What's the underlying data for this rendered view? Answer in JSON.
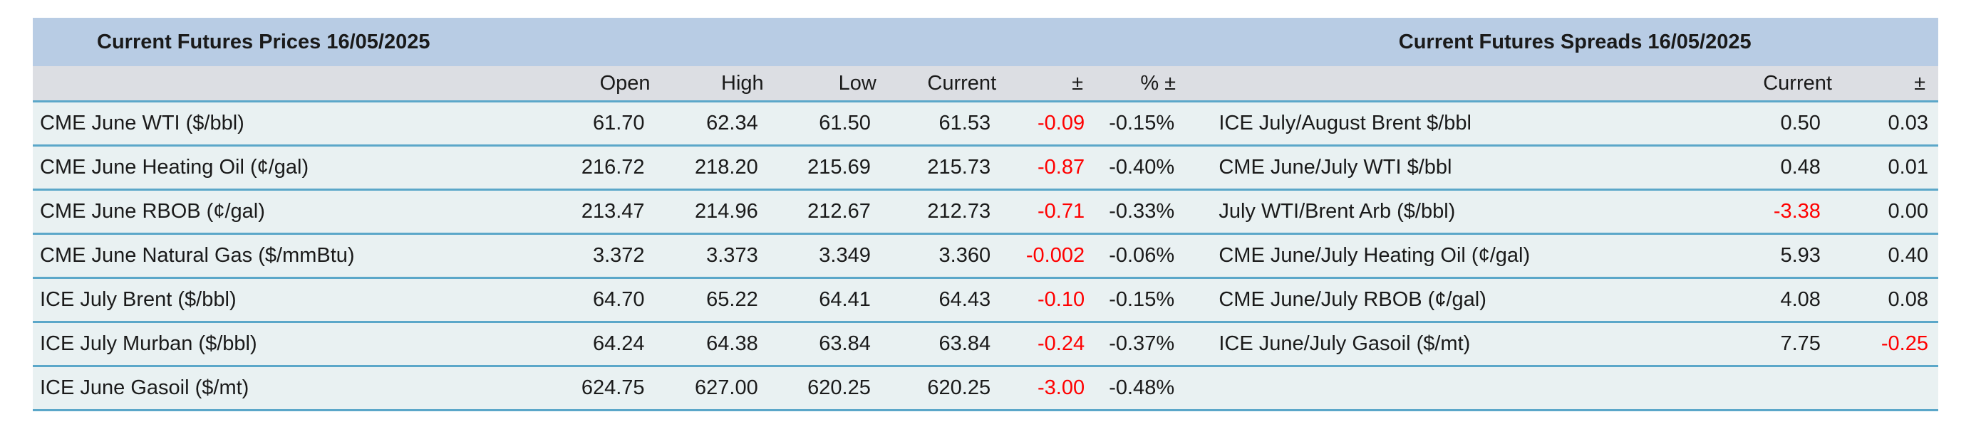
{
  "colors": {
    "title_bg": "#b8cce4",
    "header_bg": "#dcdee3",
    "row_bg": "#e9f1f2",
    "row_border": "#5ba7c9",
    "negative": "#ff0000",
    "text": "#1a1a1a"
  },
  "prices": {
    "title": "Current Futures Prices 16/05/2025",
    "headers": {
      "open": "Open",
      "high": "High",
      "low": "Low",
      "current": "Current",
      "change": "±",
      "pct_change": "% ±"
    },
    "rows": [
      {
        "name": "CME June WTI ($/bbl)",
        "open": "61.70",
        "high": "62.34",
        "low": "61.50",
        "current": "61.53",
        "change": "-0.09",
        "pct": "-0.15%"
      },
      {
        "name": "CME June Heating Oil (¢/gal)",
        "open": "216.72",
        "high": "218.20",
        "low": "215.69",
        "current": "215.73",
        "change": "-0.87",
        "pct": "-0.40%"
      },
      {
        "name": "CME June RBOB (¢/gal)",
        "open": "213.47",
        "high": "214.96",
        "low": "212.67",
        "current": "212.73",
        "change": "-0.71",
        "pct": "-0.33%"
      },
      {
        "name": "CME June Natural Gas ($/mmBtu)",
        "open": "3.372",
        "high": "3.373",
        "low": "3.349",
        "current": "3.360",
        "change": "-0.002",
        "pct": "-0.06%"
      },
      {
        "name": "ICE July Brent ($/bbl)",
        "open": "64.70",
        "high": "65.22",
        "low": "64.41",
        "current": "64.43",
        "change": "-0.10",
        "pct": "-0.15%"
      },
      {
        "name": "ICE July Murban ($/bbl)",
        "open": "64.24",
        "high": "64.38",
        "low": "63.84",
        "current": "63.84",
        "change": "-0.24",
        "pct": "-0.37%"
      },
      {
        "name": "ICE June Gasoil ($/mt)",
        "open": "624.75",
        "high": "627.00",
        "low": "620.25",
        "current": "620.25",
        "change": "-3.00",
        "pct": "-0.48%"
      }
    ]
  },
  "spreads": {
    "title": "Current Futures Spreads 16/05/2025",
    "headers": {
      "current": "Current",
      "change": "±"
    },
    "rows": [
      {
        "name": "ICE July/August Brent $/bbl",
        "current": "0.50",
        "change": "0.03",
        "current_negative": false,
        "change_negative": false
      },
      {
        "name": "CME June/July WTI $/bbl",
        "current": "0.48",
        "change": "0.01",
        "current_negative": false,
        "change_negative": false
      },
      {
        "name": "July WTI/Brent Arb ($/bbl)",
        "current": "-3.38",
        "change": "0.00",
        "current_negative": true,
        "change_negative": false
      },
      {
        "name": "CME June/July Heating Oil (¢/gal)",
        "current": "5.93",
        "change": "0.40",
        "current_negative": false,
        "change_negative": false
      },
      {
        "name": "CME June/July RBOB (¢/gal)",
        "current": "4.08",
        "change": "0.08",
        "current_negative": false,
        "change_negative": false
      },
      {
        "name": "ICE June/July Gasoil ($/mt)",
        "current": "7.75",
        "change": "-0.25",
        "current_negative": false,
        "change_negative": true
      }
    ]
  }
}
